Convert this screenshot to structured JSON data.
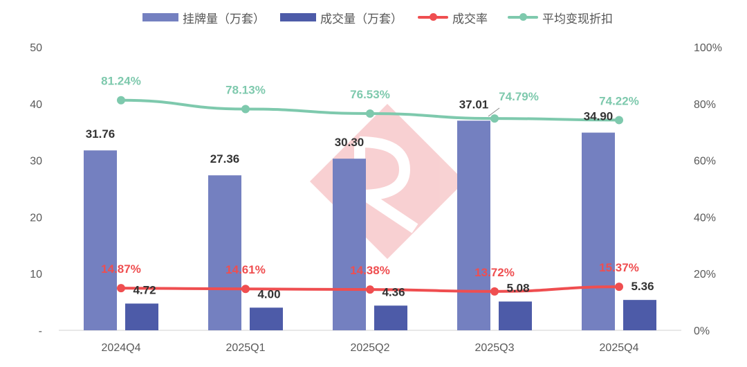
{
  "chart_data": {
    "type": "bar",
    "categories": [
      "2024Q4",
      "2025Q1",
      "2025Q2",
      "2025Q3",
      "2025Q4"
    ],
    "series": [
      {
        "name": "挂牌量（万套）",
        "kind": "bar",
        "axis": "left",
        "color": "#7480c0",
        "values": [
          31.76,
          27.36,
          30.3,
          37.01,
          34.9
        ],
        "labels": [
          "31.76",
          "27.36",
          "30.30",
          "37.01",
          "34.90"
        ]
      },
      {
        "name": "成交量（万套）",
        "kind": "bar",
        "axis": "left",
        "color": "#4d5ba8",
        "values": [
          4.72,
          4.0,
          4.36,
          5.08,
          5.36
        ],
        "labels": [
          "4.72",
          "4.00",
          "4.36",
          "5.08",
          "5.36"
        ]
      },
      {
        "name": "成交率",
        "kind": "line",
        "axis": "right",
        "color": "#ef4e50",
        "values": [
          14.87,
          14.61,
          14.38,
          13.72,
          15.37
        ],
        "labels": [
          "14.87%",
          "14.61%",
          "14.38%",
          "13.72%",
          "15.37%"
        ]
      },
      {
        "name": "平均变现折扣",
        "kind": "line",
        "axis": "right",
        "color": "#7ec9ad",
        "values": [
          81.24,
          78.13,
          76.53,
          74.79,
          74.22
        ],
        "labels": [
          "81.24%",
          "78.13%",
          "76.53%",
          "74.79%",
          "74.22%"
        ]
      }
    ],
    "y_left": {
      "ticks": [
        "-",
        "10",
        "20",
        "30",
        "40",
        "50"
      ],
      "ylim": [
        0,
        50
      ]
    },
    "y_right": {
      "ticks": [
        "0%",
        "20%",
        "40%",
        "60%",
        "80%",
        "100%"
      ],
      "ylim": [
        0,
        100
      ]
    },
    "legend_position": "top",
    "grid": false
  }
}
